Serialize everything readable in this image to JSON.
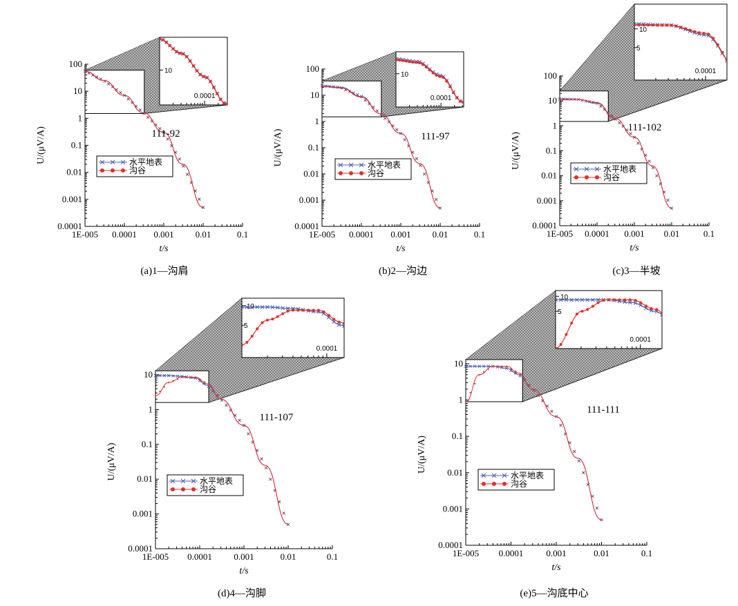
{
  "colors": {
    "series_flat": "#4a5fb0",
    "series_gully": "#e0302a",
    "axis": "#000000",
    "inset_fill": "#9a9a9a"
  },
  "icons": [
    "x-marker-icon",
    "circle-marker-icon",
    "hatch-zoom-projection-icon"
  ],
  "chart_data": [
    {
      "type": "line",
      "caption": "(a)1—沟肩",
      "case_label": "111-92",
      "xlabel": "t/s",
      "ylabel": "U/(μV/A)",
      "xscale": "log",
      "yscale": "log",
      "xlim": [
        1e-05,
        0.1
      ],
      "ylim": [
        0.0001,
        100
      ],
      "x_ticks": [
        "1E-005",
        "0.0001",
        "0.001",
        "0.01",
        "0.1"
      ],
      "y_ticks": [
        "0.0001",
        "0.001",
        "0.01",
        "0.1",
        "1",
        "10",
        "100"
      ],
      "legend": [
        "水平地表",
        "沟谷"
      ],
      "series": [
        {
          "name": "水平地表",
          "marker": "x",
          "x": [
            1e-05,
            3e-05,
            0.0001,
            0.0003,
            0.001,
            0.003,
            0.01
          ],
          "y": [
            55,
            25,
            7,
            1.6,
            0.3,
            0.02,
            0.0005
          ]
        },
        {
          "name": "沟谷",
          "marker": "circle",
          "x": [
            1e-05,
            3e-05,
            0.0001,
            0.0003,
            0.001,
            0.003,
            0.01
          ],
          "y": [
            55,
            25,
            7,
            1.6,
            0.3,
            0.02,
            0.0005
          ]
        }
      ],
      "inset": {
        "x_tick": "0.0001",
        "y_tick": "10"
      }
    },
    {
      "type": "line",
      "caption": "(b)2—沟边",
      "case_label": "111-97",
      "xlabel": "t/s",
      "ylabel": "U/(μV/A)",
      "xscale": "log",
      "yscale": "log",
      "xlim": [
        1e-05,
        0.1
      ],
      "ylim": [
        0.0001,
        100
      ],
      "x_ticks": [
        "1E-005",
        "0.0001",
        "0.001",
        "0.01",
        "0.1"
      ],
      "y_ticks": [
        "0.0001",
        "0.001",
        "0.01",
        "0.1",
        "1",
        "10",
        "100"
      ],
      "legend": [
        "水平地表",
        "沟谷"
      ],
      "series": [
        {
          "name": "水平地表",
          "marker": "x",
          "x": [
            1e-05,
            3e-05,
            0.0001,
            0.0003,
            0.001,
            0.003,
            0.01
          ],
          "y": [
            23,
            20,
            9,
            2,
            0.35,
            0.025,
            0.0005
          ]
        },
        {
          "name": "沟谷",
          "marker": "circle",
          "x": [
            1e-05,
            3e-05,
            0.0001,
            0.0003,
            0.001,
            0.003,
            0.01
          ],
          "y": [
            22,
            19,
            8.5,
            2,
            0.35,
            0.025,
            0.0005
          ]
        }
      ],
      "inset": {
        "x_tick": "0.0001",
        "y_tick": "10"
      }
    },
    {
      "type": "line",
      "caption": "(c)3—半坡",
      "case_label": "111-102",
      "xlabel": "t/s",
      "ylabel": "U/(μV/A)",
      "xscale": "log",
      "yscale": "log",
      "xlim": [
        1e-05,
        0.1
      ],
      "ylim": [
        0.0001,
        100
      ],
      "x_ticks": [
        "1E-005",
        "0.0001",
        "0.001",
        "0.01",
        "0.1"
      ],
      "y_ticks": [
        "0.0001",
        "0.001",
        "0.01",
        "0.1",
        "1",
        "10",
        "100"
      ],
      "legend": [
        "水平地表",
        "沟谷"
      ],
      "series": [
        {
          "name": "水平地表",
          "marker": "x",
          "x": [
            1e-05,
            3e-05,
            0.0001,
            0.0003,
            0.001,
            0.003,
            0.01
          ],
          "y": [
            12,
            11.5,
            8,
            2,
            0.35,
            0.025,
            0.0005
          ]
        },
        {
          "name": "沟谷",
          "marker": "circle",
          "x": [
            1e-05,
            3e-05,
            0.0001,
            0.0003,
            0.001,
            0.003,
            0.01
          ],
          "y": [
            11.5,
            11.5,
            8.5,
            2,
            0.35,
            0.025,
            0.0005
          ]
        }
      ],
      "inset": {
        "x_tick": "0.0001",
        "y_tick_top": "10",
        "y_tick_bottom": "5"
      }
    },
    {
      "type": "line",
      "caption": "(d)4—沟脚",
      "case_label": "111-107",
      "xlabel": "t/s",
      "ylabel": "U/(μV/A)",
      "xscale": "log",
      "yscale": "log",
      "xlim": [
        1e-05,
        0.1
      ],
      "ylim": [
        0.0001,
        10
      ],
      "x_ticks": [
        "1E-005",
        "0.0001",
        "0.001",
        "0.01",
        "0.1"
      ],
      "y_ticks": [
        "0.0001",
        "0.001",
        "0.01",
        "0.1",
        "1",
        "10"
      ],
      "legend": [
        "水平地表",
        "沟谷"
      ],
      "series": [
        {
          "name": "水平地表",
          "marker": "x",
          "x": [
            1e-05,
            2e-05,
            4e-05,
            8e-05,
            0.00015,
            0.0003,
            0.001,
            0.003,
            0.01
          ],
          "y": [
            9.5,
            9.5,
            9,
            8,
            5,
            2,
            0.35,
            0.025,
            0.0005
          ]
        },
        {
          "name": "沟谷",
          "marker": "circle",
          "x": [
            1e-05,
            2e-05,
            4e-05,
            8e-05,
            0.00015,
            0.0003,
            0.001,
            0.003,
            0.01
          ],
          "y": [
            2.5,
            6,
            8.5,
            8.5,
            5.5,
            2,
            0.35,
            0.025,
            0.0005
          ]
        }
      ],
      "inset": {
        "x_tick": "0.0001",
        "y_tick_top": "10",
        "y_tick_bottom": "5"
      }
    },
    {
      "type": "line",
      "caption": "(e)5—沟底中心",
      "case_label": "111-111",
      "xlabel": "t/s",
      "ylabel": "U/(μV/A)",
      "xscale": "log",
      "yscale": "log",
      "xlim": [
        1e-05,
        0.1
      ],
      "ylim": [
        0.0001,
        10
      ],
      "x_ticks": [
        "1E-005",
        "0.0001",
        "0.001",
        "0.01",
        "0.1"
      ],
      "y_ticks": [
        "0.0001",
        "0.001",
        "0.01",
        "0.1",
        "1",
        "10"
      ],
      "legend": [
        "水平地表",
        "沟谷"
      ],
      "series": [
        {
          "name": "水平地表",
          "marker": "x",
          "x": [
            1e-05,
            2e-05,
            4e-05,
            8e-05,
            0.00015,
            0.0003,
            0.001,
            0.003,
            0.01
          ],
          "y": [
            8.5,
            8.5,
            8.5,
            7.5,
            5,
            2,
            0.35,
            0.025,
            0.0005
          ]
        },
        {
          "name": "沟谷",
          "marker": "circle",
          "x": [
            1e-05,
            2e-05,
            4e-05,
            8e-05,
            0.00015,
            0.0003,
            0.001,
            0.003,
            0.01
          ],
          "y": [
            0.9,
            5,
            8.5,
            8.5,
            5.5,
            2,
            0.35,
            0.025,
            0.0005
          ]
        }
      ],
      "inset": {
        "x_tick": "0.0001",
        "y_tick_top": "10",
        "y_tick_bottom": "5"
      }
    }
  ]
}
